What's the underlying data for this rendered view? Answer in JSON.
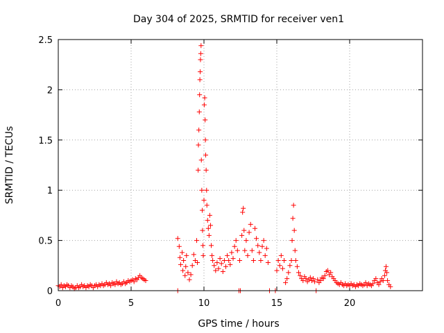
{
  "chart_data": {
    "type": "scatter",
    "title": "Day 304 of 2025, SRMTID for receiver ven1",
    "xlabel": "GPS time / hours",
    "ylabel": "SRMTID / TECUs",
    "xlim": [
      0,
      25
    ],
    "ylim": [
      0,
      2.5
    ],
    "xticks": [
      0,
      5,
      10,
      15,
      20
    ],
    "xtick_labels": [
      "0",
      "5",
      "10",
      "15",
      "20"
    ],
    "yticks": [
      0,
      0.5,
      1,
      1.5,
      2,
      2.5
    ],
    "ytick_labels": [
      "0",
      "0.5",
      "1",
      "1.5",
      "2",
      "2.5"
    ],
    "grid": true,
    "marker": "+",
    "color": "#ff0000",
    "series": [
      {
        "name": "ven1",
        "points": [
          [
            0.0,
            0.05
          ],
          [
            0.1,
            0.04
          ],
          [
            0.2,
            0.06
          ],
          [
            0.3,
            0.03
          ],
          [
            0.4,
            0.05
          ],
          [
            0.5,
            0.04
          ],
          [
            0.6,
            0.06
          ],
          [
            0.7,
            0.05
          ],
          [
            0.8,
            0.03
          ],
          [
            0.9,
            0.05
          ],
          [
            1.0,
            0.04
          ],
          [
            1.1,
            0.02
          ],
          [
            1.2,
            0.03
          ],
          [
            1.3,
            0.05
          ],
          [
            1.4,
            0.03
          ],
          [
            1.5,
            0.04
          ],
          [
            1.6,
            0.06
          ],
          [
            1.7,
            0.04
          ],
          [
            1.8,
            0.05
          ],
          [
            1.9,
            0.03
          ],
          [
            2.0,
            0.05
          ],
          [
            2.1,
            0.04
          ],
          [
            2.2,
            0.06
          ],
          [
            2.3,
            0.05
          ],
          [
            2.4,
            0.03
          ],
          [
            2.5,
            0.05
          ],
          [
            2.6,
            0.06
          ],
          [
            2.7,
            0.04
          ],
          [
            2.8,
            0.06
          ],
          [
            2.9,
            0.05
          ],
          [
            3.0,
            0.07
          ],
          [
            3.1,
            0.05
          ],
          [
            3.2,
            0.06
          ],
          [
            3.3,
            0.08
          ],
          [
            3.4,
            0.06
          ],
          [
            3.5,
            0.07
          ],
          [
            3.6,
            0.05
          ],
          [
            3.7,
            0.08
          ],
          [
            3.8,
            0.07
          ],
          [
            3.9,
            0.06
          ],
          [
            4.0,
            0.09
          ],
          [
            4.1,
            0.07
          ],
          [
            4.2,
            0.08
          ],
          [
            4.3,
            0.06
          ],
          [
            4.4,
            0.07
          ],
          [
            4.5,
            0.09
          ],
          [
            4.6,
            0.07
          ],
          [
            4.7,
            0.08
          ],
          [
            4.8,
            0.1
          ],
          [
            4.9,
            0.09
          ],
          [
            5.0,
            0.1
          ],
          [
            5.1,
            0.11
          ],
          [
            5.2,
            0.09
          ],
          [
            5.3,
            0.12
          ],
          [
            5.4,
            0.11
          ],
          [
            5.5,
            0.13
          ],
          [
            5.6,
            0.15
          ],
          [
            5.7,
            0.13
          ],
          [
            5.8,
            0.12
          ],
          [
            5.9,
            0.11
          ],
          [
            6.0,
            0.1
          ],
          [
            8.2,
            0.0
          ],
          [
            8.2,
            0.52
          ],
          [
            8.3,
            0.44
          ],
          [
            8.35,
            0.33
          ],
          [
            8.4,
            0.26
          ],
          [
            8.5,
            0.38
          ],
          [
            8.55,
            0.2
          ],
          [
            8.6,
            0.3
          ],
          [
            8.7,
            0.15
          ],
          [
            8.75,
            0.24
          ],
          [
            8.8,
            0.35
          ],
          [
            8.9,
            0.18
          ],
          [
            9.0,
            0.11
          ],
          [
            9.1,
            0.16
          ],
          [
            9.2,
            0.25
          ],
          [
            9.3,
            0.36
          ],
          [
            9.4,
            0.3
          ],
          [
            9.5,
            0.5
          ],
          [
            9.55,
            0.28
          ],
          [
            9.6,
            1.2
          ],
          [
            9.62,
            1.45
          ],
          [
            9.65,
            1.6
          ],
          [
            9.68,
            1.78
          ],
          [
            9.7,
            1.95
          ],
          [
            9.72,
            2.1
          ],
          [
            9.74,
            2.18
          ],
          [
            9.76,
            2.3
          ],
          [
            9.78,
            2.36
          ],
          [
            9.8,
            2.44
          ],
          [
            9.82,
            1.3
          ],
          [
            9.85,
            1.0
          ],
          [
            9.88,
            0.8
          ],
          [
            9.9,
            0.6
          ],
          [
            9.93,
            0.45
          ],
          [
            9.95,
            0.35
          ],
          [
            10.0,
            0.9
          ],
          [
            10.02,
            1.85
          ],
          [
            10.05,
            1.92
          ],
          [
            10.08,
            1.7
          ],
          [
            10.1,
            1.5
          ],
          [
            10.12,
            1.35
          ],
          [
            10.15,
            1.2
          ],
          [
            10.18,
            1.0
          ],
          [
            10.2,
            0.85
          ],
          [
            10.25,
            0.7
          ],
          [
            10.3,
            0.62
          ],
          [
            10.35,
            0.55
          ],
          [
            10.4,
            0.75
          ],
          [
            10.45,
            0.65
          ],
          [
            10.5,
            0.45
          ],
          [
            10.55,
            0.35
          ],
          [
            10.6,
            0.3
          ],
          [
            10.7,
            0.25
          ],
          [
            10.8,
            0.2
          ],
          [
            10.9,
            0.28
          ],
          [
            11.0,
            0.22
          ],
          [
            11.1,
            0.32
          ],
          [
            11.2,
            0.27
          ],
          [
            11.3,
            0.19
          ],
          [
            11.4,
            0.3
          ],
          [
            11.5,
            0.24
          ],
          [
            11.6,
            0.35
          ],
          [
            11.7,
            0.3
          ],
          [
            11.8,
            0.26
          ],
          [
            11.9,
            0.38
          ],
          [
            12.0,
            0.32
          ],
          [
            12.1,
            0.44
          ],
          [
            12.2,
            0.5
          ],
          [
            12.3,
            0.4
          ],
          [
            12.4,
            0.0
          ],
          [
            12.45,
            0.3
          ],
          [
            12.5,
            0.0
          ],
          [
            12.6,
            0.55
          ],
          [
            12.65,
            0.78
          ],
          [
            12.7,
            0.82
          ],
          [
            12.75,
            0.6
          ],
          [
            12.8,
            0.4
          ],
          [
            12.9,
            0.5
          ],
          [
            13.0,
            0.35
          ],
          [
            13.1,
            0.58
          ],
          [
            13.2,
            0.66
          ],
          [
            13.3,
            0.4
          ],
          [
            13.4,
            0.3
          ],
          [
            13.5,
            0.62
          ],
          [
            13.6,
            0.52
          ],
          [
            13.7,
            0.45
          ],
          [
            13.8,
            0.38
          ],
          [
            13.9,
            0.3
          ],
          [
            14.0,
            0.44
          ],
          [
            14.1,
            0.5
          ],
          [
            14.2,
            0.35
          ],
          [
            14.3,
            0.42
          ],
          [
            14.4,
            0.28
          ],
          [
            14.5,
            0.0
          ],
          [
            14.9,
            0.0
          ],
          [
            15.0,
            0.2
          ],
          [
            15.1,
            0.3
          ],
          [
            15.2,
            0.25
          ],
          [
            15.3,
            0.35
          ],
          [
            15.4,
            0.22
          ],
          [
            15.5,
            0.3
          ],
          [
            15.6,
            0.08
          ],
          [
            15.7,
            0.12
          ],
          [
            15.8,
            0.18
          ],
          [
            15.9,
            0.25
          ],
          [
            16.0,
            0.3
          ],
          [
            16.05,
            0.5
          ],
          [
            16.1,
            0.72
          ],
          [
            16.15,
            0.85
          ],
          [
            16.2,
            0.6
          ],
          [
            16.25,
            0.4
          ],
          [
            16.3,
            0.3
          ],
          [
            16.4,
            0.24
          ],
          [
            16.5,
            0.18
          ],
          [
            16.6,
            0.15
          ],
          [
            16.7,
            0.12
          ],
          [
            16.8,
            0.1
          ],
          [
            16.9,
            0.14
          ],
          [
            17.0,
            0.12
          ],
          [
            17.1,
            0.09
          ],
          [
            17.2,
            0.11
          ],
          [
            17.3,
            0.13
          ],
          [
            17.4,
            0.1
          ],
          [
            17.5,
            0.12
          ],
          [
            17.6,
            0.09
          ],
          [
            17.7,
            0.0
          ],
          [
            17.8,
            0.11
          ],
          [
            17.9,
            0.08
          ],
          [
            18.0,
            0.1
          ],
          [
            18.1,
            0.13
          ],
          [
            18.2,
            0.12
          ],
          [
            18.3,
            0.15
          ],
          [
            18.4,
            0.19
          ],
          [
            18.5,
            0.2
          ],
          [
            18.6,
            0.16
          ],
          [
            18.7,
            0.18
          ],
          [
            18.8,
            0.14
          ],
          [
            18.9,
            0.12
          ],
          [
            19.0,
            0.1
          ],
          [
            19.1,
            0.08
          ],
          [
            19.2,
            0.07
          ],
          [
            19.3,
            0.06
          ],
          [
            19.4,
            0.08
          ],
          [
            19.5,
            0.06
          ],
          [
            19.6,
            0.05
          ],
          [
            19.7,
            0.07
          ],
          [
            19.8,
            0.05
          ],
          [
            19.9,
            0.06
          ],
          [
            20.0,
            0.05
          ],
          [
            20.1,
            0.07
          ],
          [
            20.2,
            0.05
          ],
          [
            20.3,
            0.06
          ],
          [
            20.4,
            0.04
          ],
          [
            20.5,
            0.06
          ],
          [
            20.6,
            0.05
          ],
          [
            20.7,
            0.07
          ],
          [
            20.8,
            0.06
          ],
          [
            20.9,
            0.05
          ],
          [
            21.0,
            0.06
          ],
          [
            21.1,
            0.08
          ],
          [
            21.2,
            0.05
          ],
          [
            21.3,
            0.07
          ],
          [
            21.4,
            0.06
          ],
          [
            21.5,
            0.05
          ],
          [
            21.6,
            0.07
          ],
          [
            21.7,
            0.1
          ],
          [
            21.8,
            0.12
          ],
          [
            21.9,
            0.08
          ],
          [
            22.0,
            0.06
          ],
          [
            22.1,
            0.09
          ],
          [
            22.2,
            0.12
          ],
          [
            22.3,
            0.1
          ],
          [
            22.4,
            0.15
          ],
          [
            22.45,
            0.2
          ],
          [
            22.5,
            0.24
          ],
          [
            22.55,
            0.18
          ],
          [
            22.6,
            0.1
          ],
          [
            22.7,
            0.06
          ],
          [
            22.8,
            0.04
          ]
        ]
      }
    ]
  }
}
